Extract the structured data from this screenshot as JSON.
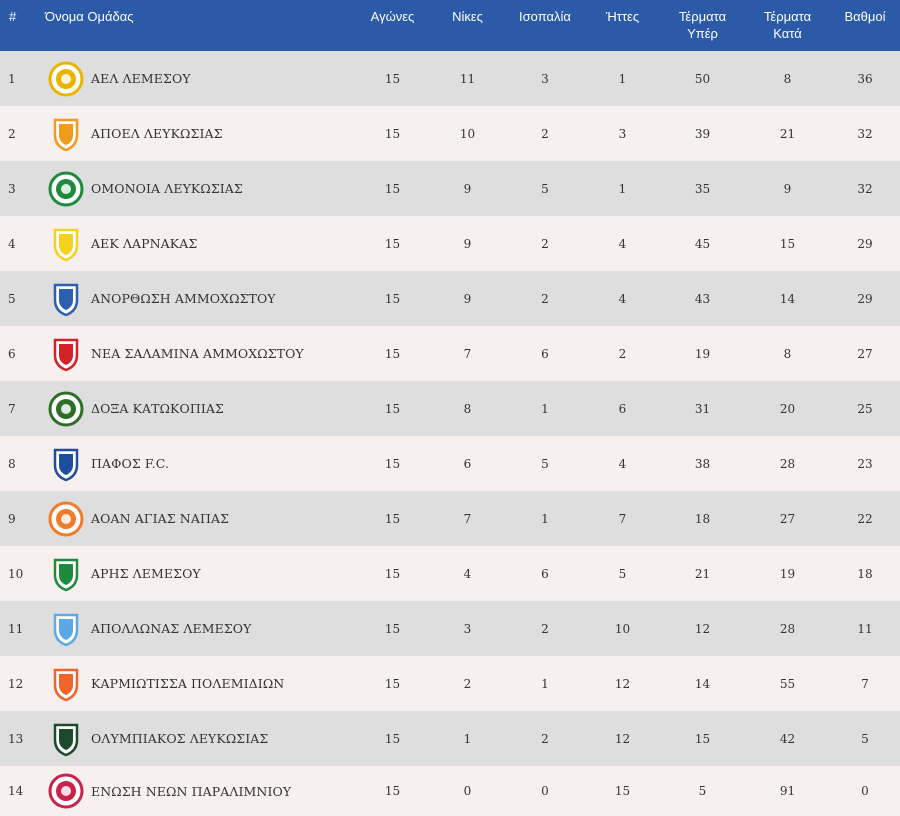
{
  "table": {
    "headers": {
      "rank": "#",
      "team": "Όνομα Ομάδας",
      "played": "Αγώνες",
      "wins": "Νίκες",
      "draws": "Ισοπαλία",
      "losses": "Ήττες",
      "goals_for": "Τέρματα\nΥπέρ",
      "goals_against": "Τέρματα\nΚατά",
      "points": "Βαθμοί"
    },
    "rows": [
      {
        "rank": "1",
        "team": "ΑΕΛ ΛΕΜΕΣΟΥ",
        "crest": "ael-crest-icon",
        "color": "#e8b400",
        "played": "15",
        "wins": "11",
        "draws": "3",
        "losses": "1",
        "gf": "50",
        "ga": "8",
        "pts": "36"
      },
      {
        "rank": "2",
        "team": "ΑΠΟΕΛ ΛΕΥΚΩΣΙΑΣ",
        "crest": "apoel-crest-icon",
        "color": "#f29a1a",
        "played": "15",
        "wins": "10",
        "draws": "2",
        "losses": "3",
        "gf": "39",
        "ga": "21",
        "pts": "32"
      },
      {
        "rank": "3",
        "team": "ΟΜΟΝΟΙΑ ΛΕΥΚΩΣΙΑΣ",
        "crest": "omonoia-crest-icon",
        "color": "#1f8a3c",
        "played": "15",
        "wins": "9",
        "draws": "5",
        "losses": "1",
        "gf": "35",
        "ga": "9",
        "pts": "32"
      },
      {
        "rank": "4",
        "team": "ΑΕΚ ΛΑΡΝΑΚΑΣ",
        "crest": "aek-crest-icon",
        "color": "#f3d21c",
        "played": "15",
        "wins": "9",
        "draws": "2",
        "losses": "4",
        "gf": "45",
        "ga": "15",
        "pts": "29"
      },
      {
        "rank": "5",
        "team": "ΑΝΟΡΘΩΣΗ ΑΜΜΟΧΩΣΤΟΥ",
        "crest": "anorthosis-crest-icon",
        "color": "#2c5fb0",
        "played": "15",
        "wins": "9",
        "draws": "2",
        "losses": "4",
        "gf": "43",
        "ga": "14",
        "pts": "29"
      },
      {
        "rank": "6",
        "team": "ΝΕΑ ΣΑΛΑΜΙΝΑ ΑΜΜΟΧΩΣΤΟΥ",
        "crest": "nea-salamina-crest-icon",
        "color": "#d42027",
        "played": "15",
        "wins": "7",
        "draws": "6",
        "losses": "2",
        "gf": "19",
        "ga": "8",
        "pts": "27"
      },
      {
        "rank": "7",
        "team": "ΔΟΞΑ ΚΑΤΩΚΟΠΙΑΣ",
        "crest": "doxa-crest-icon",
        "color": "#2f6e2a",
        "played": "15",
        "wins": "8",
        "draws": "1",
        "losses": "6",
        "gf": "31",
        "ga": "20",
        "pts": "25"
      },
      {
        "rank": "8",
        "team": "ΠΑΦΟΣ F.C.",
        "crest": "pafos-crest-icon",
        "color": "#1d4f9c",
        "played": "15",
        "wins": "6",
        "draws": "5",
        "losses": "4",
        "gf": "38",
        "ga": "28",
        "pts": "23"
      },
      {
        "rank": "9",
        "team": "ΑΟΑΝ ΑΓΙΑΣ ΝΑΠΑΣ",
        "crest": "aoan-crest-icon",
        "color": "#f07b2a",
        "played": "15",
        "wins": "7",
        "draws": "1",
        "losses": "7",
        "gf": "18",
        "ga": "27",
        "pts": "22"
      },
      {
        "rank": "10",
        "team": "ΑΡΗΣ ΛΕΜΕΣΟΥ",
        "crest": "aris-crest-icon",
        "color": "#1f8a3c",
        "played": "15",
        "wins": "4",
        "draws": "6",
        "losses": "5",
        "gf": "21",
        "ga": "19",
        "pts": "18"
      },
      {
        "rank": "11",
        "team": "ΑΠΟΛΛΩΝΑΣ ΛΕΜΕΣΟΥ",
        "crest": "apollon-crest-icon",
        "color": "#5aa9e6",
        "played": "15",
        "wins": "3",
        "draws": "2",
        "losses": "10",
        "gf": "12",
        "ga": "28",
        "pts": "11"
      },
      {
        "rank": "12",
        "team": "ΚΑΡΜΙΩΤΙΣΣΑ ΠΟΛΕΜΙΔΙΩΝ",
        "crest": "karmiotissa-crest-icon",
        "color": "#f0642a",
        "played": "15",
        "wins": "2",
        "draws": "1",
        "losses": "12",
        "gf": "14",
        "ga": "55",
        "pts": "7"
      },
      {
        "rank": "13",
        "team": "ΟΛΥΜΠΙΑΚΟΣ ΛΕΥΚΩΣΙΑΣ",
        "crest": "olympiakos-crest-icon",
        "color": "#1c4a2a",
        "played": "15",
        "wins": "1",
        "draws": "2",
        "losses": "12",
        "gf": "15",
        "ga": "42",
        "pts": "5"
      },
      {
        "rank": "14",
        "team": "ΕΝΩΣΗ ΝΕΩΝ ΠΑΡΑΛΙΜΝΙΟΥ",
        "crest": "enp-crest-icon",
        "color": "#c8234a",
        "played": "15",
        "wins": "0",
        "draws": "0",
        "losses": "15",
        "gf": "5",
        "ga": "91",
        "pts": "0"
      }
    ]
  }
}
